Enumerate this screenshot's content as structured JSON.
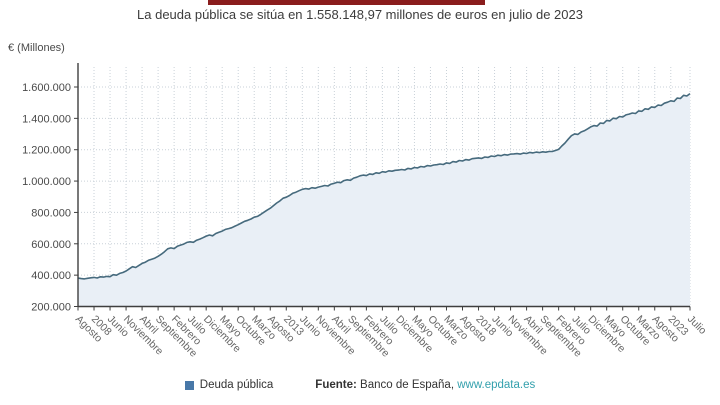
{
  "header": {
    "subtitle": "La deuda pública se sitúa en 1.558.148,97 millones de euros en julio de 2023"
  },
  "legend": {
    "series_label": "Deuda pública",
    "source_label": "Fuente:",
    "source_text": " Banco de España, ",
    "source_link": "www.epdata.es"
  },
  "colors": {
    "line": "#466a7d",
    "area_fill": "#e9eff6",
    "legend_swatch": "#4878a8",
    "link": "#33a0ad",
    "grid": "#c9d1d8",
    "axis": "#3f3f3f",
    "y_label": "#4a4a4a",
    "x_label": "#666666",
    "cropped_bar": "#8a1d1d"
  },
  "chart_data": {
    "type": "line",
    "title": "La deuda pública se sitúa en 1.558.148,97 millones de euros en julio de 2023",
    "ylabel": "€ (Millones)",
    "xlabel": "",
    "grid": "dotted",
    "legend_position": "bottom",
    "ylim": [
      200000,
      1755000
    ],
    "y_tick_values": [
      200000,
      400000,
      600000,
      800000,
      1000000,
      1200000,
      1400000,
      1600000
    ],
    "y_tick_labels": [
      "200.000",
      "400.000",
      "600.000",
      "800.000",
      "1.000.000",
      "1.200.000",
      "1.400.000",
      "1.600.000"
    ],
    "x_tick_labels": [
      "Agosto",
      "2008",
      "Junio",
      "Noviembre",
      "Abril",
      "Septiembre",
      "Febrero",
      "Julio",
      "Diciembre",
      "Mayo",
      "Octubre",
      "Marzo",
      "Agosto",
      "2013",
      "Junio",
      "Noviembre",
      "Abril",
      "Septiembre",
      "Febrero",
      "Julio",
      "Diciembre",
      "Mayo",
      "Octubre",
      "Marzo",
      "Agosto",
      "2018",
      "Junio",
      "Noviembre",
      "Abril",
      "Septiembre",
      "Febrero",
      "Julio",
      "Diciembre",
      "Mayo",
      "Octubre",
      "Marzo",
      "Agosto",
      "2023",
      "Julio"
    ],
    "x_tick_month_index": [
      0,
      5,
      10,
      15,
      20,
      25,
      30,
      35,
      40,
      45,
      50,
      55,
      60,
      65,
      70,
      75,
      80,
      85,
      90,
      95,
      100,
      105,
      110,
      115,
      120,
      125,
      130,
      135,
      140,
      145,
      150,
      155,
      160,
      165,
      170,
      175,
      180,
      185,
      191
    ],
    "months_total": 192,
    "last_value_label": "1.558.148,97",
    "series": [
      {
        "name": "Deuda pública",
        "values_millones": [
          381000,
          378200,
          376100,
          379600,
          382800,
          385900,
          381700,
          389500,
          387200,
          392000,
          389800,
          402600,
          399900,
          411300,
          417100,
          426400,
          440200,
          453900,
          448800,
          462300,
          474700,
          482600,
          494900,
          501500,
          508700,
          519900,
          533600,
          549800,
          568100,
          573900,
          569600,
          583800,
          591700,
          597900,
          608800,
          612500,
          609700,
          622900,
          629600,
          638800,
          649300,
          655900,
          650700,
          665800,
          673600,
          680900,
          691800,
          696600,
          702900,
          712800,
          721900,
          732700,
          743500,
          749900,
          757800,
          769600,
          774900,
          786700,
          800600,
          813900,
          826700,
          843800,
          859900,
          873700,
          890700,
          896900,
          907800,
          921700,
          928900,
          938800,
          947600,
          951900,
          948700,
          957800,
          954700,
          961800,
          966000,
          971900,
          968800,
          980700,
          985900,
          992800,
          989700,
          1002900,
          1007800,
          1004700,
          1018900,
          1024800,
          1033700,
          1037900,
          1034800,
          1045700,
          1042800,
          1052900,
          1049800,
          1059900,
          1056800,
          1065700,
          1062900,
          1068800,
          1070100,
          1073900,
          1070800,
          1080700,
          1077900,
          1086800,
          1083700,
          1092900,
          1089800,
          1098700,
          1095900,
          1102800,
          1104600,
          1108900,
          1105800,
          1115700,
          1112800,
          1123900,
          1120800,
          1130900,
          1127800,
          1136700,
          1133900,
          1142800,
          1145100,
          1147900,
          1144800,
          1153700,
          1150900,
          1159800,
          1156700,
          1164900,
          1161800,
          1168700,
          1165900,
          1171800,
          1173400,
          1174900,
          1171800,
          1178700,
          1175900,
          1182800,
          1179700,
          1184900,
          1181800,
          1186700,
          1183900,
          1188300,
          1188800,
          1194900,
          1201800,
          1223700,
          1242900,
          1266800,
          1289700,
          1300900,
          1297800,
          1312700,
          1320900,
          1332800,
          1345800,
          1353900,
          1350800,
          1370700,
          1367900,
          1386800,
          1383700,
          1400900,
          1397800,
          1411700,
          1408900,
          1421800,
          1427200,
          1433900,
          1430800,
          1447700,
          1444900,
          1460800,
          1457700,
          1472900,
          1469800,
          1484700,
          1481900,
          1496800,
          1502800,
          1511900,
          1508300,
          1529100,
          1526800,
          1546900,
          1542300,
          1558149
        ]
      }
    ]
  }
}
